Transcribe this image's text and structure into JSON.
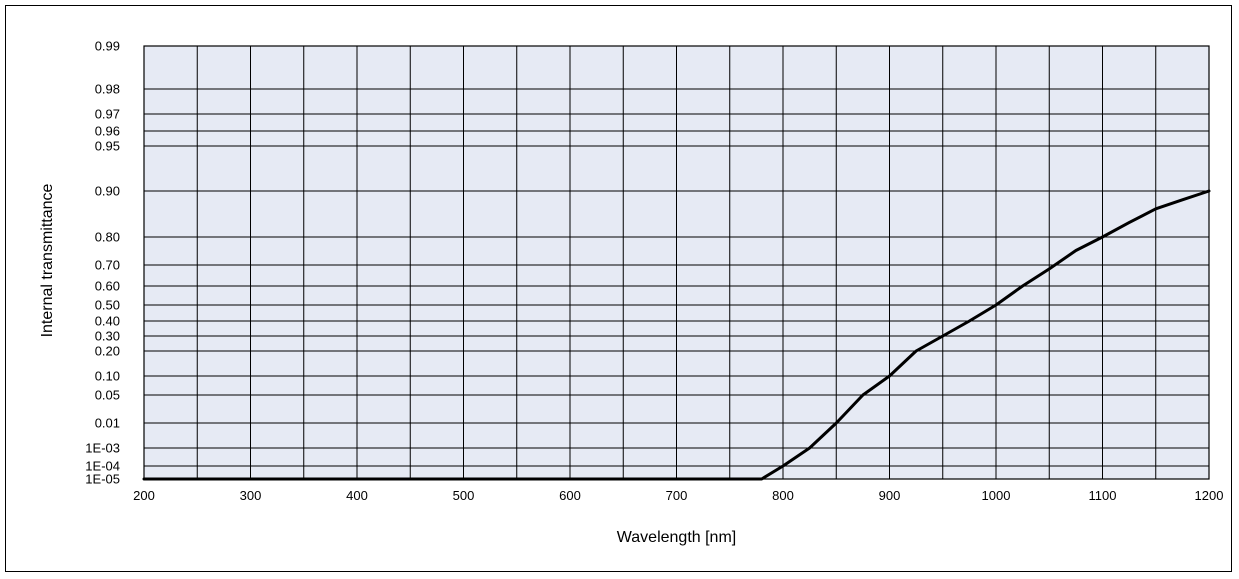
{
  "chart_data": {
    "type": "line",
    "title": "",
    "xlabel": "Wavelength [nm]",
    "ylabel": "Internal transmittance",
    "xlim": [
      200,
      1200
    ],
    "x_ticks": [
      "200",
      "300",
      "400",
      "500",
      "600",
      "700",
      "800",
      "900",
      "1000",
      "1100",
      "1200"
    ],
    "x_gridlines": [
      200,
      250,
      300,
      350,
      400,
      450,
      500,
      550,
      600,
      650,
      700,
      750,
      800,
      850,
      900,
      950,
      1000,
      1050,
      1100,
      1150,
      1200
    ],
    "y_scale": "probability (nonlinear)",
    "y_ticks": [
      {
        "label": "0.99",
        "value": 0.99
      },
      {
        "label": "0.98",
        "value": 0.98
      },
      {
        "label": "0.97",
        "value": 0.97
      },
      {
        "label": "0.96",
        "value": 0.96
      },
      {
        "label": "0.95",
        "value": 0.95
      },
      {
        "label": "0.90",
        "value": 0.9
      },
      {
        "label": "0.80",
        "value": 0.8
      },
      {
        "label": "0.70",
        "value": 0.7
      },
      {
        "label": "0.60",
        "value": 0.6
      },
      {
        "label": "0.50",
        "value": 0.5
      },
      {
        "label": "0.40",
        "value": 0.4
      },
      {
        "label": "0.30",
        "value": 0.3
      },
      {
        "label": "0.20",
        "value": 0.2
      },
      {
        "label": "0.10",
        "value": 0.1
      },
      {
        "label": "0.05",
        "value": 0.05
      },
      {
        "label": "0.01",
        "value": 0.01
      },
      {
        "label": "1E-03",
        "value": 0.001
      },
      {
        "label": "1E-04",
        "value": 0.0001
      },
      {
        "label": "1E-05",
        "value": 1e-05
      }
    ],
    "grid": true,
    "legend": "none",
    "plot_background": "#e6eaf4",
    "line_color": "#000000",
    "series": [
      {
        "x": [
          200,
          780,
          800,
          825,
          850,
          875,
          900,
          925,
          950,
          975,
          1000,
          1025,
          1050,
          1075,
          1100,
          1125,
          1150,
          1175,
          1200
        ],
        "y": [
          1e-05,
          1e-05,
          0.0001,
          0.001,
          0.01,
          0.05,
          0.1,
          0.2,
          0.3,
          0.4,
          0.5,
          0.6,
          0.68,
          0.75,
          0.8,
          0.83,
          0.86,
          0.88,
          0.9
        ]
      }
    ]
  }
}
